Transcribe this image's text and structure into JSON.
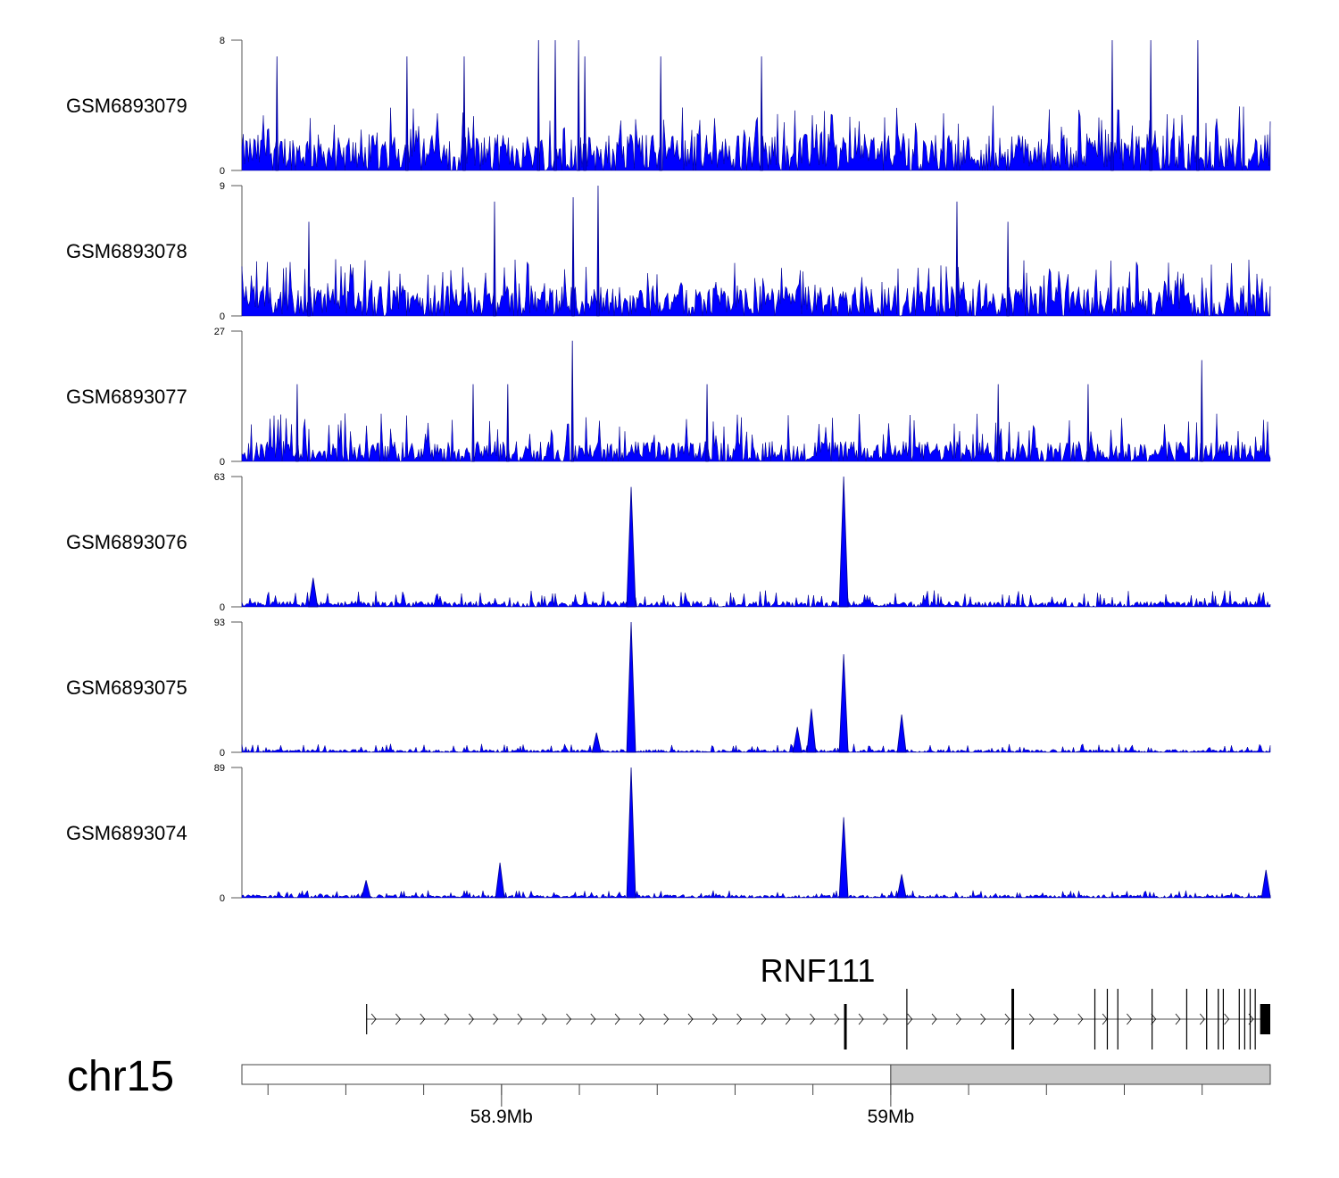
{
  "chart_data": {
    "type": "area",
    "title": "",
    "chromosome": "chr15",
    "xlim_mb": [
      58.8333,
      59.0975
    ],
    "x_ticks": [
      {
        "mb": 58.9,
        "label": "58.9Mb"
      },
      {
        "mb": 59.0,
        "label": "59Mb"
      }
    ],
    "minor_tick_step_mb": 0.02,
    "fill_color": "#0000ff",
    "stroke_color": "#00008b",
    "tracks": [
      {
        "name": "GSM6893079",
        "ylim": [
          0,
          8
        ],
        "ymin_label": "0",
        "ymax_label": "8",
        "noise": 1.6,
        "spike": 4,
        "peaks": [
          [
            58.9095,
            8
          ],
          [
            58.9138,
            8
          ],
          [
            58.9198,
            8
          ],
          [
            59.0569,
            8
          ],
          [
            59.0668,
            8
          ],
          [
            59.0789,
            8
          ],
          [
            58.8423,
            7
          ],
          [
            58.8904,
            7
          ],
          [
            58.9214,
            7
          ],
          [
            58.9409,
            7
          ],
          [
            58.9668,
            7
          ],
          [
            58.8757,
            7
          ]
        ]
      },
      {
        "name": "GSM6893078",
        "ylim": [
          0,
          9
        ],
        "ymin_label": "0",
        "ymax_label": "9",
        "noise": 1.5,
        "spike": 4,
        "peaks": [
          [
            58.9248,
            9
          ],
          [
            58.9184,
            8.2
          ],
          [
            58.8982,
            7.9
          ],
          [
            59.017,
            7.9
          ],
          [
            58.8505,
            6.5
          ],
          [
            59.0301,
            6.5
          ]
        ]
      },
      {
        "name": "GSM6893077",
        "ylim": [
          0,
          27
        ],
        "ymin_label": "0",
        "ymax_label": "27",
        "noise": 3,
        "spike": 10,
        "peaks": [
          [
            58.9182,
            25
          ],
          [
            59.0799,
            21
          ],
          [
            58.8475,
            16
          ],
          [
            58.8927,
            16
          ],
          [
            58.9016,
            16
          ],
          [
            59.0276,
            16
          ],
          [
            59.0507,
            16
          ],
          [
            58.9528,
            16
          ]
        ]
      },
      {
        "name": "GSM6893076",
        "ylim": [
          0,
          63
        ],
        "ymin_label": "0",
        "ymax_label": "63",
        "noise": 2,
        "spike": 8,
        "peaks": [
          [
            58.9879,
            63
          ],
          [
            58.9333,
            58
          ],
          [
            58.8516,
            14
          ]
        ]
      },
      {
        "name": "GSM6893075",
        "ylim": [
          0,
          93
        ],
        "ymin_label": "0",
        "ymax_label": "93",
        "noise": 1.5,
        "spike": 6,
        "peaks": [
          [
            58.9333,
            93
          ],
          [
            58.9879,
            70
          ],
          [
            58.9796,
            31
          ],
          [
            59.0028,
            27
          ],
          [
            58.976,
            18
          ],
          [
            58.9244,
            14
          ]
        ]
      },
      {
        "name": "GSM6893074",
        "ylim": [
          0,
          89
        ],
        "ymin_label": "0",
        "ymax_label": "89",
        "noise": 1.5,
        "spike": 5,
        "peaks": [
          [
            58.9333,
            89
          ],
          [
            58.9879,
            55
          ],
          [
            58.8996,
            24
          ],
          [
            59.0028,
            16
          ],
          [
            58.8652,
            12
          ],
          [
            59.0964,
            19
          ]
        ]
      }
    ],
    "gene": {
      "name": "RNF111",
      "strand": "+",
      "start_mb": 58.8652,
      "end_mb": 59.0975,
      "exons": [
        [
          58.8652,
          58.8654
        ],
        [
          58.988,
          58.9885
        ],
        [
          59.004,
          59.0042
        ],
        [
          59.031,
          59.0315
        ],
        [
          59.0523,
          59.0525
        ],
        [
          59.0555,
          59.0557
        ],
        [
          59.0582,
          59.0584
        ],
        [
          59.067,
          59.0672
        ],
        [
          59.0759,
          59.0761
        ],
        [
          59.081,
          59.0813
        ],
        [
          59.084,
          59.0843
        ],
        [
          59.0853,
          59.0855
        ],
        [
          59.0894,
          59.0896
        ],
        [
          59.0908,
          59.091
        ],
        [
          59.0922,
          59.0924
        ],
        [
          59.0935,
          59.0937
        ],
        [
          59.0949,
          59.0975
        ]
      ]
    },
    "ideogram": {
      "highlight_start_mb": 59.0,
      "highlight_color": "#c8c8c8"
    }
  }
}
